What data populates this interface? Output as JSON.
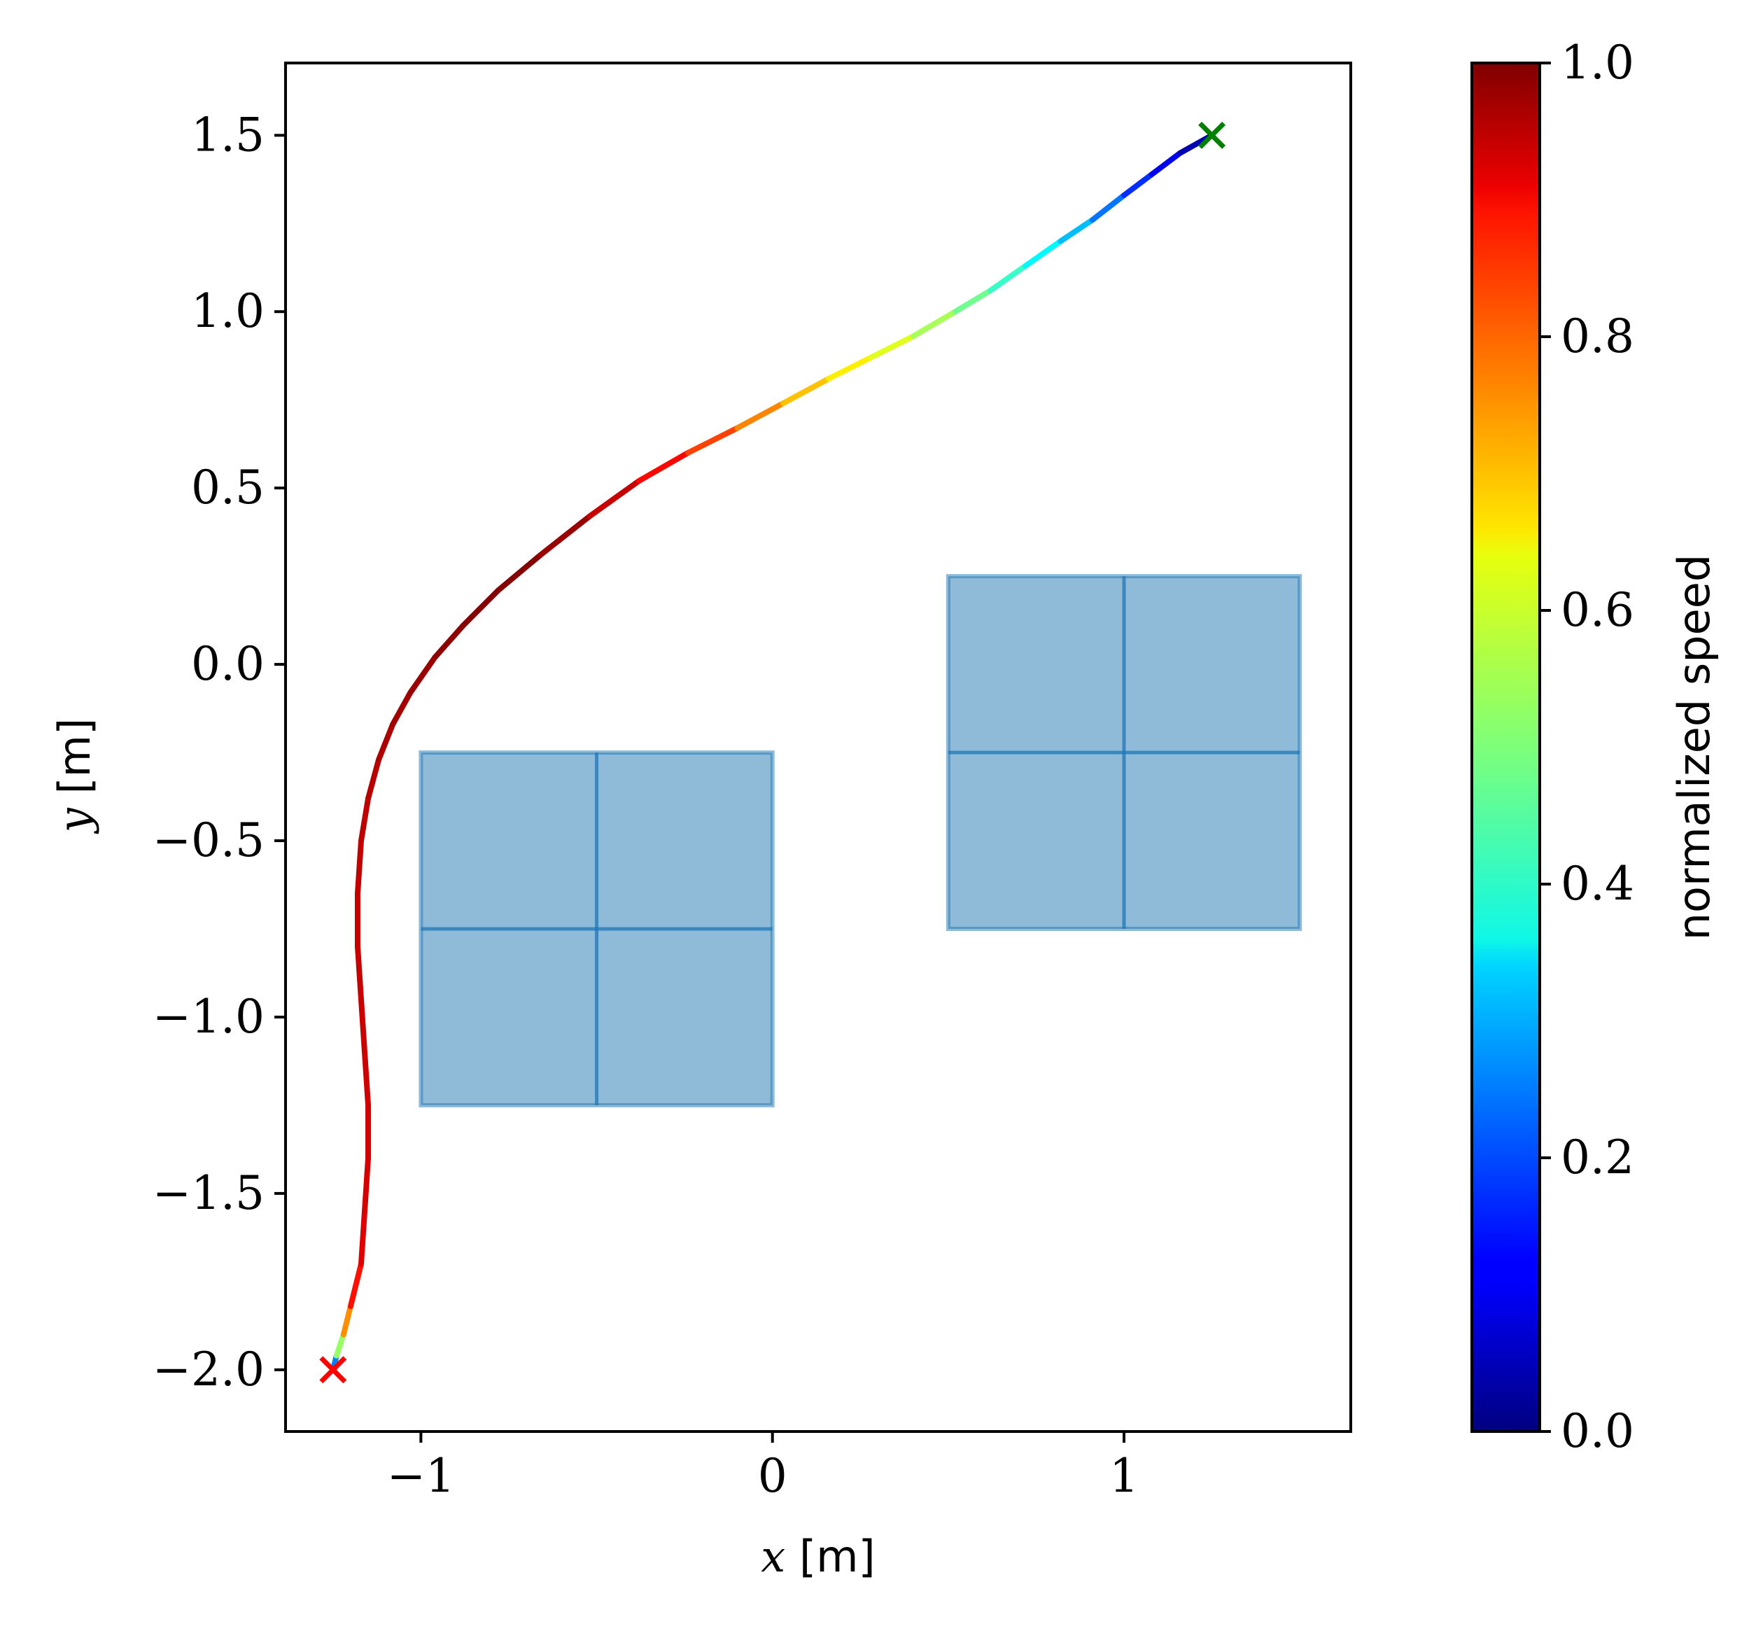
{
  "chart_data": {
    "type": "scatter",
    "title": "",
    "xlabel": {
      "symbol": "x",
      "unit": "[m]"
    },
    "ylabel": {
      "symbol": "y",
      "unit": "[m]"
    },
    "xlim": [
      -1.385,
      1.645
    ],
    "ylim": [
      -2.175,
      1.705
    ],
    "xticks": [
      -1,
      0,
      1
    ],
    "xtick_labels": [
      "−1",
      "0",
      "1"
    ],
    "yticks": [
      -2.0,
      -1.5,
      -1.0,
      -0.5,
      0.0,
      0.5,
      1.0,
      1.5
    ],
    "ytick_labels": [
      "−2.0",
      "−1.5",
      "−1.0",
      "−0.5",
      "0.0",
      "0.5",
      "1.0",
      "1.5"
    ],
    "grid": false,
    "colorbar": {
      "label": "normalized speed",
      "colormap": "jet",
      "range": [
        0.0,
        1.0
      ],
      "ticks": [
        0.0,
        0.2,
        0.4,
        0.6,
        0.8,
        1.0
      ],
      "tick_labels": [
        "0.0",
        "0.2",
        "0.4",
        "0.6",
        "0.8",
        "1.0"
      ]
    },
    "obstacles": [
      {
        "x": [
          -1.0,
          0.0
        ],
        "y": [
          -1.25,
          -0.25
        ],
        "divider_x": -0.5,
        "divider_y": -0.75,
        "fill": "#1f77b4"
      },
      {
        "x": [
          0.5,
          1.5
        ],
        "y": [
          -0.75,
          0.25
        ],
        "divider_x": 1.0,
        "divider_y": -0.25,
        "fill": "#1f77b4"
      }
    ],
    "trajectory": {
      "colormap_by": "normalized speed",
      "points": [
        {
          "x": -1.25,
          "y": -2.0,
          "speed": 0.1
        },
        {
          "x": -1.24,
          "y": -1.96,
          "speed": 0.4
        },
        {
          "x": -1.22,
          "y": -1.9,
          "speed": 0.65
        },
        {
          "x": -1.2,
          "y": -1.82,
          "speed": 0.82
        },
        {
          "x": -1.17,
          "y": -1.7,
          "speed": 0.9
        },
        {
          "x": -1.16,
          "y": -1.55,
          "speed": 0.91
        },
        {
          "x": -1.15,
          "y": -1.4,
          "speed": 0.92
        },
        {
          "x": -1.15,
          "y": -1.25,
          "speed": 0.92
        },
        {
          "x": -1.16,
          "y": -1.1,
          "speed": 0.92
        },
        {
          "x": -1.17,
          "y": -0.95,
          "speed": 0.93
        },
        {
          "x": -1.18,
          "y": -0.8,
          "speed": 0.93
        },
        {
          "x": -1.18,
          "y": -0.65,
          "speed": 0.93
        },
        {
          "x": -1.17,
          "y": -0.5,
          "speed": 0.94
        },
        {
          "x": -1.15,
          "y": -0.38,
          "speed": 0.94
        },
        {
          "x": -1.12,
          "y": -0.27,
          "speed": 0.95
        },
        {
          "x": -1.08,
          "y": -0.17,
          "speed": 0.96
        },
        {
          "x": -1.03,
          "y": -0.08,
          "speed": 0.97
        },
        {
          "x": -0.96,
          "y": 0.02,
          "speed": 0.98
        },
        {
          "x": -0.88,
          "y": 0.11,
          "speed": 0.99
        },
        {
          "x": -0.78,
          "y": 0.21,
          "speed": 1.0
        },
        {
          "x": -0.66,
          "y": 0.31,
          "speed": 0.99
        },
        {
          "x": -0.52,
          "y": 0.42,
          "speed": 0.96
        },
        {
          "x": -0.38,
          "y": 0.52,
          "speed": 0.9
        },
        {
          "x": -0.24,
          "y": 0.6,
          "speed": 0.84
        },
        {
          "x": -0.1,
          "y": 0.67,
          "speed": 0.78
        },
        {
          "x": 0.03,
          "y": 0.74,
          "speed": 0.71
        },
        {
          "x": 0.16,
          "y": 0.81,
          "speed": 0.66
        },
        {
          "x": 0.28,
          "y": 0.87,
          "speed": 0.62
        },
        {
          "x": 0.4,
          "y": 0.93,
          "speed": 0.57
        },
        {
          "x": 0.52,
          "y": 1.0,
          "speed": 0.51
        },
        {
          "x": 0.62,
          "y": 1.06,
          "speed": 0.46
        },
        {
          "x": 0.72,
          "y": 1.13,
          "speed": 0.4
        },
        {
          "x": 0.82,
          "y": 1.2,
          "speed": 0.34
        },
        {
          "x": 0.91,
          "y": 1.26,
          "speed": 0.28
        },
        {
          "x": 1.0,
          "y": 1.33,
          "speed": 0.2
        },
        {
          "x": 1.08,
          "y": 1.39,
          "speed": 0.14
        },
        {
          "x": 1.16,
          "y": 1.45,
          "speed": 0.08
        },
        {
          "x": 1.25,
          "y": 1.5,
          "speed": 0.02
        }
      ]
    },
    "markers": [
      {
        "name": "start",
        "x": -1.25,
        "y": -2.0,
        "symbol": "x",
        "color": "#ff0000"
      },
      {
        "name": "goal",
        "x": 1.25,
        "y": 1.5,
        "symbol": "x",
        "color": "#008000"
      }
    ]
  }
}
